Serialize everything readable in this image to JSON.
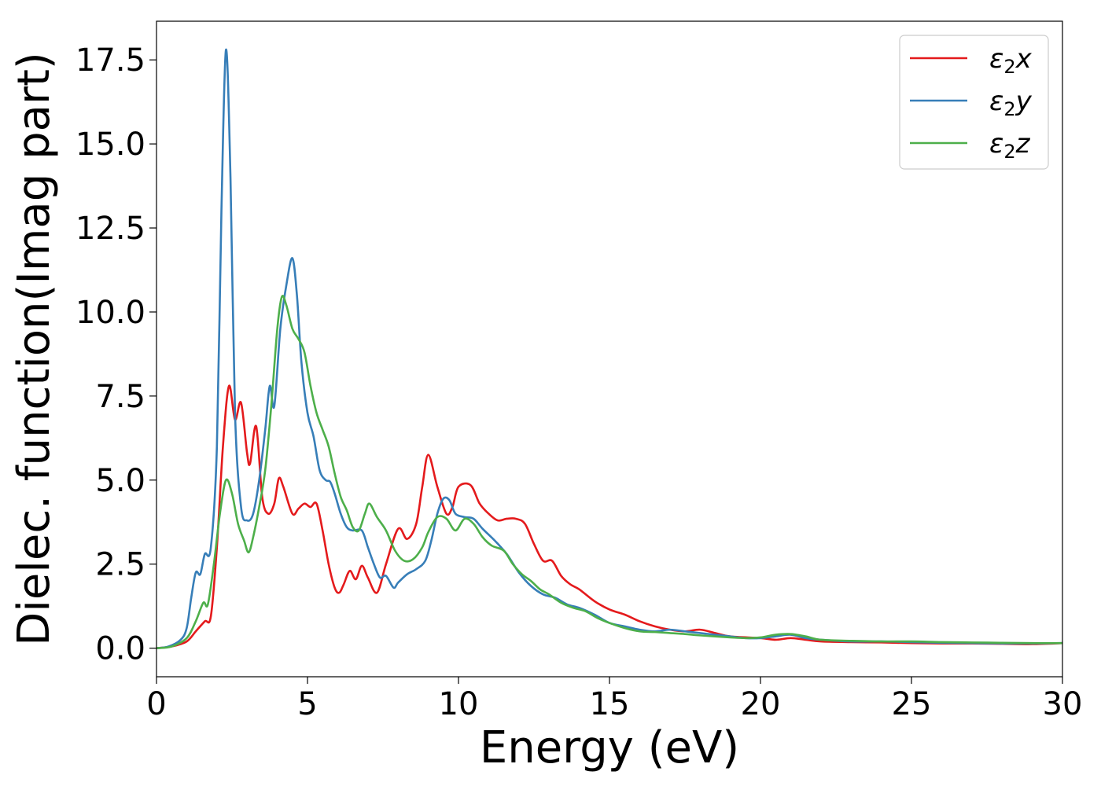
{
  "chart_data": {
    "type": "line",
    "xlabel": "Energy (eV)",
    "ylabel": "Dielec. function(Imag part)",
    "xlim": [
      0,
      30
    ],
    "ylim": [
      -0.85,
      18.65
    ],
    "xticks": [
      0,
      5,
      10,
      15,
      20,
      25,
      30
    ],
    "xtick_labels": [
      "0",
      "5",
      "10",
      "15",
      "20",
      "25",
      "30"
    ],
    "yticks": [
      0,
      2.5,
      5,
      7.5,
      10,
      12.5,
      15,
      17.5
    ],
    "ytick_labels": [
      "0.0",
      "2.5",
      "5.0",
      "7.5",
      "10.0",
      "12.5",
      "15.0",
      "17.5"
    ],
    "grid": false,
    "legend_position": "top-right",
    "series": [
      {
        "name": "ε₂x",
        "legend_base": "ε",
        "legend_sub": "2",
        "legend_var": "x",
        "color": "#e41a1c",
        "points": [
          [
            0,
            0
          ],
          [
            0.5,
            0.05
          ],
          [
            1,
            0.2
          ],
          [
            1.3,
            0.5
          ],
          [
            1.6,
            0.8
          ],
          [
            1.8,
            0.95
          ],
          [
            2.0,
            3.0
          ],
          [
            2.2,
            6.0
          ],
          [
            2.4,
            7.8
          ],
          [
            2.6,
            6.8
          ],
          [
            2.8,
            7.3
          ],
          [
            3.0,
            5.8
          ],
          [
            3.1,
            5.5
          ],
          [
            3.3,
            6.6
          ],
          [
            3.5,
            4.5
          ],
          [
            3.7,
            4.0
          ],
          [
            3.9,
            4.3
          ],
          [
            4.05,
            5.05
          ],
          [
            4.2,
            4.8
          ],
          [
            4.5,
            4.0
          ],
          [
            4.7,
            4.15
          ],
          [
            4.9,
            4.3
          ],
          [
            5.1,
            4.2
          ],
          [
            5.3,
            4.3
          ],
          [
            5.5,
            3.5
          ],
          [
            5.7,
            2.5
          ],
          [
            5.9,
            1.8
          ],
          [
            6.05,
            1.65
          ],
          [
            6.2,
            1.9
          ],
          [
            6.4,
            2.3
          ],
          [
            6.6,
            2.05
          ],
          [
            6.8,
            2.45
          ],
          [
            7.0,
            2.1
          ],
          [
            7.3,
            1.65
          ],
          [
            7.6,
            2.5
          ],
          [
            8.0,
            3.55
          ],
          [
            8.3,
            3.25
          ],
          [
            8.6,
            3.7
          ],
          [
            8.8,
            4.8
          ],
          [
            9.0,
            5.75
          ],
          [
            9.3,
            4.8
          ],
          [
            9.6,
            4.0
          ],
          [
            9.8,
            4.2
          ],
          [
            10.0,
            4.8
          ],
          [
            10.4,
            4.85
          ],
          [
            10.7,
            4.3
          ],
          [
            11.0,
            4.0
          ],
          [
            11.3,
            3.8
          ],
          [
            11.6,
            3.85
          ],
          [
            11.9,
            3.85
          ],
          [
            12.2,
            3.7
          ],
          [
            12.5,
            3.1
          ],
          [
            12.8,
            2.6
          ],
          [
            13.1,
            2.6
          ],
          [
            13.4,
            2.15
          ],
          [
            13.7,
            1.9
          ],
          [
            14.0,
            1.75
          ],
          [
            14.5,
            1.4
          ],
          [
            15.0,
            1.15
          ],
          [
            15.5,
            1.0
          ],
          [
            16.0,
            0.8
          ],
          [
            16.5,
            0.65
          ],
          [
            17.0,
            0.55
          ],
          [
            17.5,
            0.5
          ],
          [
            18.0,
            0.55
          ],
          [
            18.5,
            0.45
          ],
          [
            19.0,
            0.35
          ],
          [
            20.0,
            0.3
          ],
          [
            20.5,
            0.25
          ],
          [
            21.0,
            0.3
          ],
          [
            21.5,
            0.25
          ],
          [
            22.0,
            0.2
          ],
          [
            23.0,
            0.18
          ],
          [
            24.0,
            0.17
          ],
          [
            25.0,
            0.15
          ],
          [
            26.0,
            0.14
          ],
          [
            27.0,
            0.14
          ],
          [
            28.0,
            0.13
          ],
          [
            29.0,
            0.12
          ],
          [
            30.0,
            0.15
          ]
        ]
      },
      {
        "name": "ε₂y",
        "legend_base": "ε",
        "legend_sub": "2",
        "legend_var": "y",
        "color": "#377eb8",
        "points": [
          [
            0,
            0
          ],
          [
            0.4,
            0.05
          ],
          [
            0.8,
            0.25
          ],
          [
            1.0,
            0.6
          ],
          [
            1.15,
            1.5
          ],
          [
            1.3,
            2.25
          ],
          [
            1.45,
            2.2
          ],
          [
            1.6,
            2.8
          ],
          [
            1.8,
            3.0
          ],
          [
            2.0,
            6.0
          ],
          [
            2.15,
            13.0
          ],
          [
            2.3,
            17.8
          ],
          [
            2.45,
            14.0
          ],
          [
            2.6,
            7.0
          ],
          [
            2.8,
            4.2
          ],
          [
            3.0,
            3.8
          ],
          [
            3.2,
            4.0
          ],
          [
            3.4,
            5.0
          ],
          [
            3.6,
            6.5
          ],
          [
            3.75,
            7.8
          ],
          [
            3.9,
            7.2
          ],
          [
            4.1,
            9.5
          ],
          [
            4.3,
            10.8
          ],
          [
            4.5,
            11.6
          ],
          [
            4.65,
            10.5
          ],
          [
            4.8,
            8.5
          ],
          [
            5.0,
            7.0
          ],
          [
            5.2,
            6.3
          ],
          [
            5.4,
            5.3
          ],
          [
            5.6,
            5.0
          ],
          [
            5.75,
            4.95
          ],
          [
            5.9,
            4.6
          ],
          [
            6.1,
            4.0
          ],
          [
            6.3,
            3.6
          ],
          [
            6.5,
            3.5
          ],
          [
            6.8,
            3.5
          ],
          [
            7.0,
            3.0
          ],
          [
            7.2,
            2.5
          ],
          [
            7.4,
            2.1
          ],
          [
            7.6,
            2.15
          ],
          [
            7.85,
            1.8
          ],
          [
            8.0,
            1.95
          ],
          [
            8.3,
            2.2
          ],
          [
            8.6,
            2.35
          ],
          [
            8.9,
            2.6
          ],
          [
            9.1,
            3.2
          ],
          [
            9.3,
            4.0
          ],
          [
            9.5,
            4.45
          ],
          [
            9.7,
            4.4
          ],
          [
            9.9,
            4.0
          ],
          [
            10.2,
            3.9
          ],
          [
            10.5,
            3.85
          ],
          [
            10.8,
            3.55
          ],
          [
            11.2,
            3.2
          ],
          [
            11.6,
            2.8
          ],
          [
            12.0,
            2.25
          ],
          [
            12.4,
            1.85
          ],
          [
            12.8,
            1.6
          ],
          [
            13.2,
            1.5
          ],
          [
            13.6,
            1.3
          ],
          [
            14.0,
            1.2
          ],
          [
            14.5,
            1.0
          ],
          [
            15.0,
            0.75
          ],
          [
            15.5,
            0.65
          ],
          [
            16.0,
            0.55
          ],
          [
            16.5,
            0.5
          ],
          [
            17.0,
            0.55
          ],
          [
            17.5,
            0.5
          ],
          [
            18.0,
            0.45
          ],
          [
            18.5,
            0.4
          ],
          [
            19.0,
            0.35
          ],
          [
            19.5,
            0.3
          ],
          [
            20.0,
            0.3
          ],
          [
            20.5,
            0.35
          ],
          [
            21.0,
            0.4
          ],
          [
            21.5,
            0.3
          ],
          [
            22.0,
            0.25
          ],
          [
            23.0,
            0.2
          ],
          [
            24.0,
            0.2
          ],
          [
            25.0,
            0.18
          ],
          [
            26.0,
            0.16
          ],
          [
            27.0,
            0.15
          ],
          [
            28.0,
            0.14
          ],
          [
            29.0,
            0.14
          ],
          [
            30.0,
            0.15
          ]
        ]
      },
      {
        "name": "ε₂z",
        "legend_base": "ε",
        "legend_sub": "2",
        "legend_var": "z",
        "color": "#4daf4a",
        "points": [
          [
            0,
            0
          ],
          [
            0.5,
            0.05
          ],
          [
            1.0,
            0.3
          ],
          [
            1.3,
            0.8
          ],
          [
            1.55,
            1.35
          ],
          [
            1.7,
            1.3
          ],
          [
            1.9,
            2.5
          ],
          [
            2.1,
            4.0
          ],
          [
            2.3,
            5.0
          ],
          [
            2.5,
            4.6
          ],
          [
            2.7,
            3.7
          ],
          [
            2.9,
            3.2
          ],
          [
            3.05,
            2.85
          ],
          [
            3.2,
            3.3
          ],
          [
            3.4,
            4.2
          ],
          [
            3.6,
            5.3
          ],
          [
            3.8,
            7.2
          ],
          [
            4.0,
            9.5
          ],
          [
            4.15,
            10.45
          ],
          [
            4.3,
            10.2
          ],
          [
            4.5,
            9.5
          ],
          [
            4.7,
            9.2
          ],
          [
            4.9,
            8.8
          ],
          [
            5.1,
            7.8
          ],
          [
            5.3,
            7.0
          ],
          [
            5.5,
            6.5
          ],
          [
            5.7,
            6.0
          ],
          [
            5.9,
            5.2
          ],
          [
            6.1,
            4.5
          ],
          [
            6.3,
            4.1
          ],
          [
            6.5,
            3.6
          ],
          [
            6.7,
            3.5
          ],
          [
            6.9,
            4.0
          ],
          [
            7.05,
            4.3
          ],
          [
            7.3,
            3.9
          ],
          [
            7.6,
            3.5
          ],
          [
            7.9,
            2.9
          ],
          [
            8.2,
            2.6
          ],
          [
            8.5,
            2.65
          ],
          [
            8.8,
            3.0
          ],
          [
            9.0,
            3.45
          ],
          [
            9.3,
            3.9
          ],
          [
            9.6,
            3.85
          ],
          [
            9.9,
            3.5
          ],
          [
            10.2,
            3.85
          ],
          [
            10.5,
            3.7
          ],
          [
            10.8,
            3.3
          ],
          [
            11.1,
            3.05
          ],
          [
            11.5,
            2.9
          ],
          [
            11.8,
            2.5
          ],
          [
            12.1,
            2.2
          ],
          [
            12.4,
            2.0
          ],
          [
            12.7,
            1.75
          ],
          [
            13.0,
            1.6
          ],
          [
            13.4,
            1.35
          ],
          [
            13.8,
            1.2
          ],
          [
            14.2,
            1.1
          ],
          [
            14.6,
            0.9
          ],
          [
            15.0,
            0.75
          ],
          [
            15.5,
            0.6
          ],
          [
            16.0,
            0.5
          ],
          [
            16.5,
            0.48
          ],
          [
            17.0,
            0.45
          ],
          [
            17.5,
            0.42
          ],
          [
            18.0,
            0.38
          ],
          [
            19.0,
            0.32
          ],
          [
            19.5,
            0.3
          ],
          [
            20.0,
            0.32
          ],
          [
            20.5,
            0.4
          ],
          [
            21.0,
            0.42
          ],
          [
            21.5,
            0.35
          ],
          [
            22.0,
            0.25
          ],
          [
            23.0,
            0.22
          ],
          [
            24.0,
            0.2
          ],
          [
            25.0,
            0.2
          ],
          [
            26.0,
            0.18
          ],
          [
            27.0,
            0.17
          ],
          [
            28.0,
            0.16
          ],
          [
            29.0,
            0.15
          ],
          [
            30.0,
            0.15
          ]
        ]
      }
    ]
  }
}
